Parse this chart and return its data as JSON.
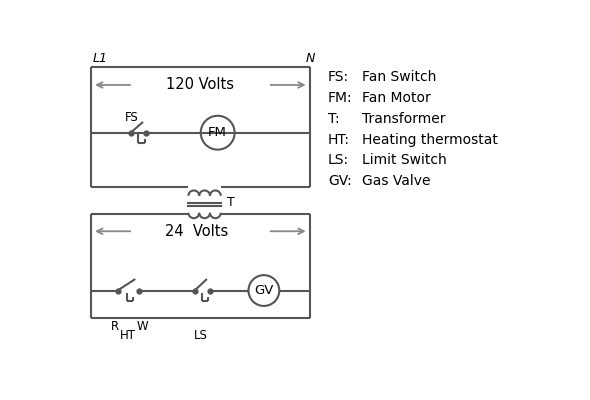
{
  "bg_color": "#ffffff",
  "line_color": "#555555",
  "text_color": "#000000",
  "legend_items": [
    [
      "FS:   Fan Switch"
    ],
    [
      "FM:   Fan Motor"
    ],
    [
      "T:      Transformer"
    ],
    [
      "HT:   Heating thermostat"
    ],
    [
      "LS:   Limit Switch"
    ],
    [
      "GV:   Gas Valve"
    ]
  ],
  "label_L1": "L1",
  "label_N": "N",
  "label_120V": "120 Volts",
  "label_24V": "24  Volts",
  "label_T": "T",
  "label_FS": "FS",
  "label_FM": "FM",
  "label_GV": "GV",
  "label_R": "R",
  "label_W": "W",
  "label_HT": "HT",
  "label_LS": "LS"
}
